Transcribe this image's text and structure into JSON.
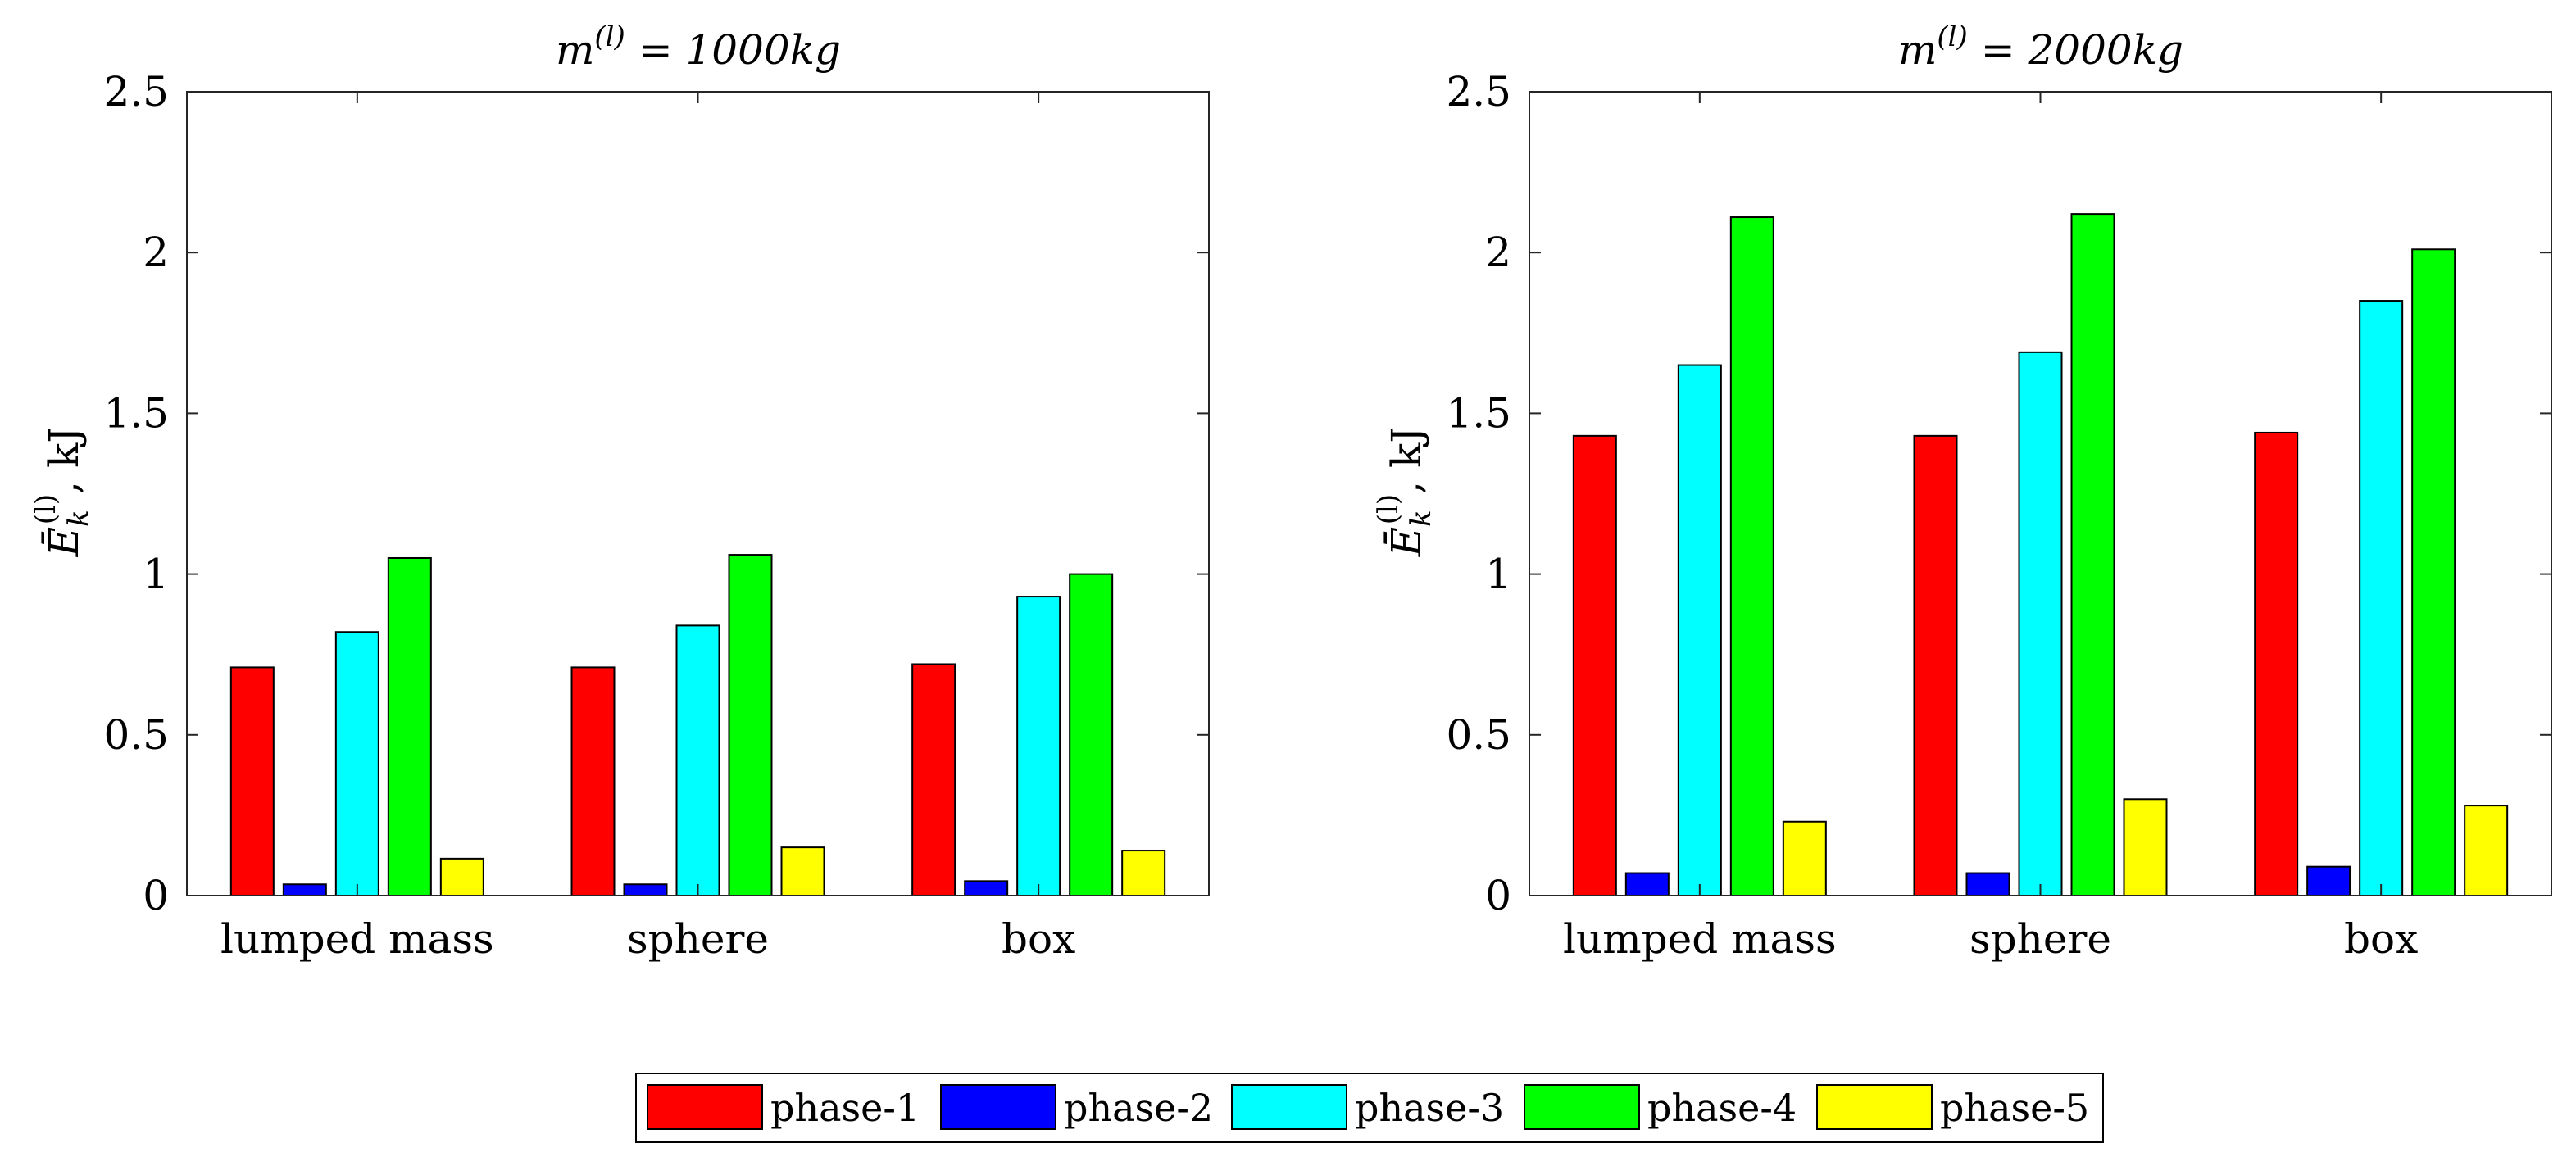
{
  "chart_data": [
    {
      "type": "bar",
      "title_var": "m",
      "title_sup": "(l)",
      "title_value": " = 1000kg",
      "ylabel_sym": "Ē",
      "ylabel_sub": "k",
      "ylabel_sup": "(l)",
      "ylabel_unit": ", kJ",
      "ylim": [
        0,
        2.5
      ],
      "yticks": [
        0,
        0.5,
        1,
        1.5,
        2,
        2.5
      ],
      "ytick_labels": [
        "0",
        "0.5",
        "1",
        "1.5",
        "2",
        "2.5"
      ],
      "categories": [
        "lumped mass",
        "sphere",
        "box"
      ],
      "series": [
        {
          "name": "phase-1",
          "values": [
            0.71,
            0.71,
            0.72
          ]
        },
        {
          "name": "phase-2",
          "values": [
            0.035,
            0.035,
            0.045
          ]
        },
        {
          "name": "phase-3",
          "values": [
            0.82,
            0.84,
            0.93
          ]
        },
        {
          "name": "phase-4",
          "values": [
            1.05,
            1.06,
            1.0
          ]
        },
        {
          "name": "phase-5",
          "values": [
            0.115,
            0.15,
            0.14
          ]
        }
      ]
    },
    {
      "type": "bar",
      "title_var": "m",
      "title_sup": "(l)",
      "title_value": " = 2000kg",
      "ylabel_sym": "Ē",
      "ylabel_sub": "k",
      "ylabel_sup": "(l)",
      "ylabel_unit": ", kJ",
      "ylim": [
        0,
        2.5
      ],
      "yticks": [
        0,
        0.5,
        1,
        1.5,
        2,
        2.5
      ],
      "ytick_labels": [
        "0",
        "0.5",
        "1",
        "1.5",
        "2",
        "2.5"
      ],
      "categories": [
        "lumped mass",
        "sphere",
        "box"
      ],
      "series": [
        {
          "name": "phase-1",
          "values": [
            1.43,
            1.43,
            1.44
          ]
        },
        {
          "name": "phase-2",
          "values": [
            0.07,
            0.07,
            0.09
          ]
        },
        {
          "name": "phase-3",
          "values": [
            1.65,
            1.69,
            1.85
          ]
        },
        {
          "name": "phase-4",
          "values": [
            2.11,
            2.12,
            2.01
          ]
        },
        {
          "name": "phase-5",
          "values": [
            0.23,
            0.3,
            0.28
          ]
        }
      ]
    }
  ],
  "legend": {
    "items": [
      {
        "label": "phase-1",
        "color": "#ff0000"
      },
      {
        "label": "phase-2",
        "color": "#0000ff"
      },
      {
        "label": "phase-3",
        "color": "#00ffff"
      },
      {
        "label": "phase-4",
        "color": "#00ff00"
      },
      {
        "label": "phase-5",
        "color": "#ffff00"
      }
    ],
    "position": "bottom-center"
  }
}
